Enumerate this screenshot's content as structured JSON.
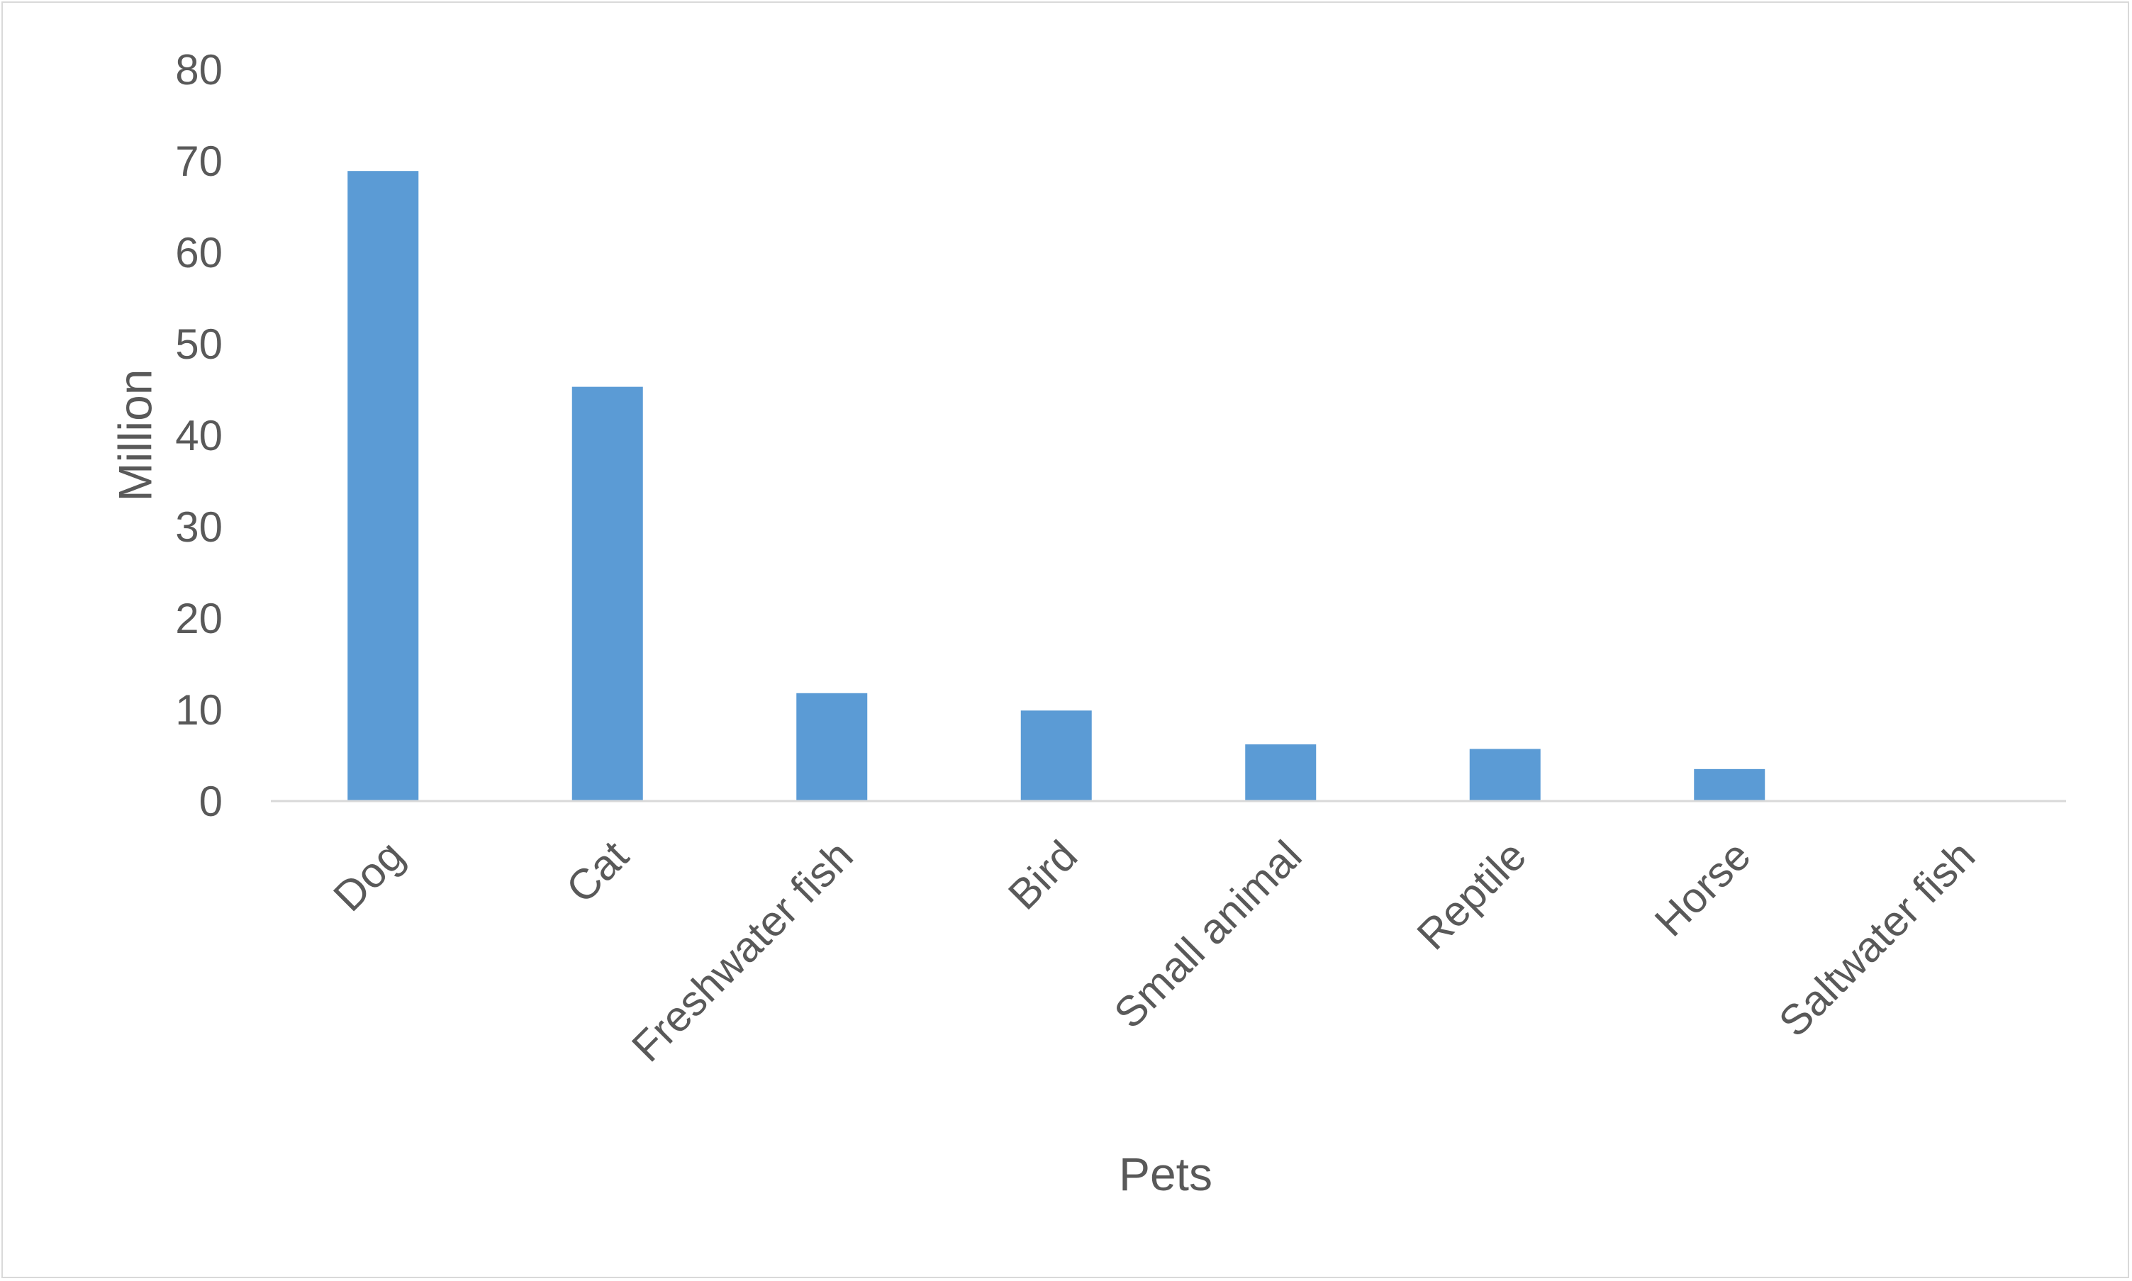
{
  "chart_data": {
    "type": "bar",
    "title": "",
    "xlabel": "Pets",
    "ylabel": "Million",
    "categories": [
      "Dog",
      "Cat",
      "Freshwater fish",
      "Bird",
      "Small animal",
      "Reptile",
      "Horse",
      "Saltwater fish"
    ],
    "values": [
      68.9,
      45.3,
      11.8,
      9.9,
      6.2,
      5.7,
      3.5,
      0
    ],
    "ylim": [
      0,
      80
    ],
    "yticks": [
      "0",
      "10",
      "20",
      "30",
      "40",
      "50",
      "60",
      "70",
      "80"
    ],
    "grid": false,
    "legend": "none",
    "bar_color": "#5b9bd5",
    "axis_color": "#d9d9d9",
    "text_color": "#595959"
  }
}
